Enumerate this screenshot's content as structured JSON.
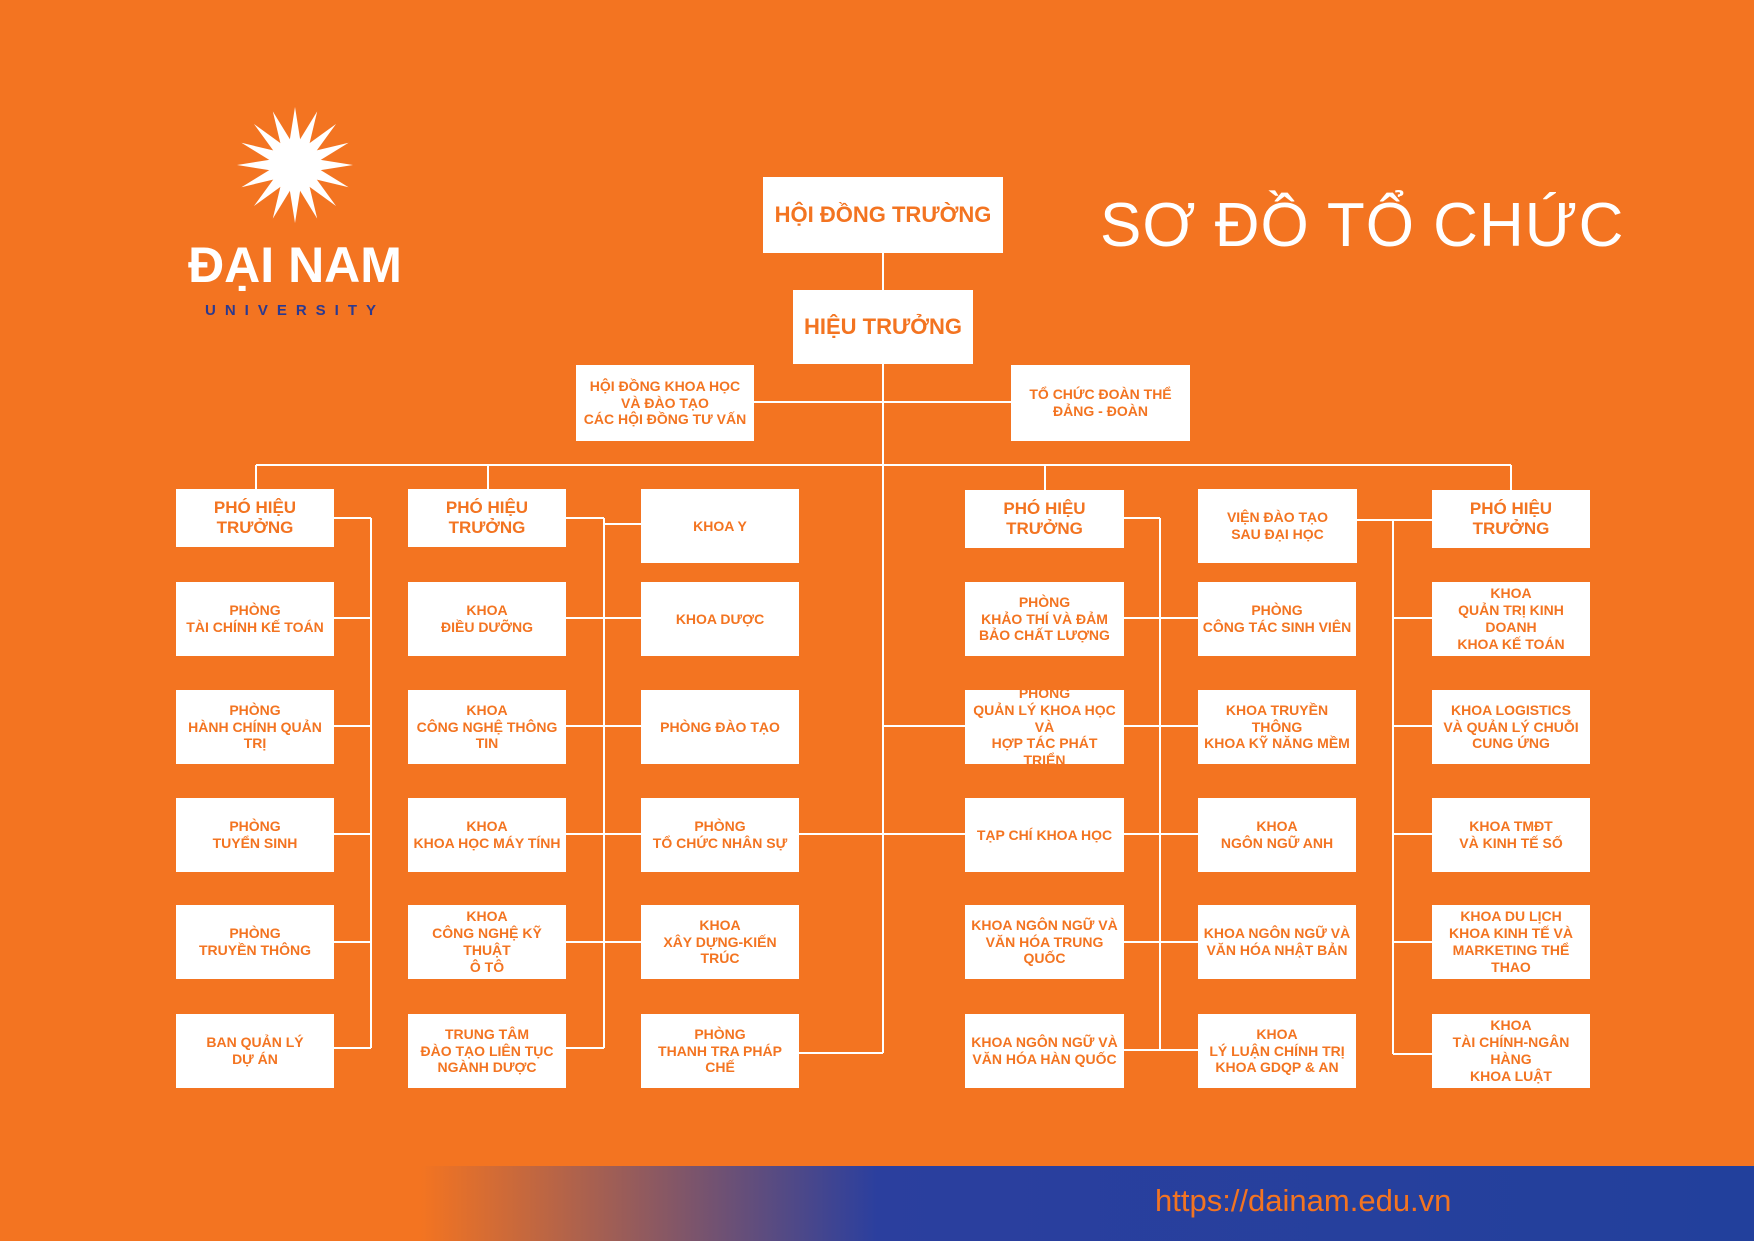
{
  "logo": {
    "name": "ĐẠI NAM",
    "sub": "UNIVERSITY"
  },
  "title": "SƠ ĐỒ TỔ CHỨC",
  "top": {
    "board": "HỘI ĐỒNG TRƯỜNG",
    "rector": "HIỆU TRƯỞNG",
    "science_council": "HỘI ĐỒNG KHOA HỌC\nVÀ ĐÀO TẠO\nCÁC HỘI ĐỒNG TƯ VẤN",
    "unions": "TỔ CHỨC ĐOÀN THỂ\nĐẢNG - ĐOÀN"
  },
  "columns": [
    {
      "head": "PHÓ HIỆU TRƯỞNG",
      "items": [
        "PHÒNG\nTÀI CHÍNH KẾ TOÁN",
        "PHÒNG\nHÀNH CHÍNH QUẢN TRỊ",
        "PHÒNG\nTUYỂN SINH",
        "PHÒNG\nTRUYỀN THÔNG",
        "BAN QUẢN LÝ\nDỰ ÁN"
      ]
    },
    {
      "head": "PHÓ HIỆU TRƯỞNG",
      "items": [
        "KHOA\nĐIỀU DƯỠNG",
        "KHOA\nCÔNG NGHỆ THÔNG TIN",
        "KHOA\nKHOA HỌC MÁY TÍNH",
        "KHOA\nCÔNG NGHỆ KỸ THUẬT\nÔ TÔ",
        "TRUNG TÂM\nĐÀO TẠO LIÊN TỤC\nNGÀNH DƯỢC"
      ]
    },
    {
      "head": "KHOA Y",
      "items": [
        "KHOA DƯỢC",
        "PHÒNG ĐÀO TẠO",
        "PHÒNG\nTỔ CHỨC NHÂN SỰ",
        "KHOA\nXÂY DỰNG-KIẾN TRÚC",
        "PHÒNG\nTHANH TRA PHÁP CHẾ"
      ]
    },
    {
      "head": "PHÓ HIỆU TRƯỞNG",
      "items": [
        "PHÒNG\nKHẢO THÍ VÀ ĐẢM\nBẢO CHẤT LƯỢNG",
        "PHÒNG\nQUẢN LÝ KHOA HỌC VÀ\nHỢP TÁC PHÁT TRIỂN",
        "TẠP CHÍ KHOA HỌC",
        "KHOA NGÔN NGỮ VÀ\nVĂN HÓA TRUNG QUỐC",
        "KHOA NGÔN NGỮ VÀ\nVĂN HÓA HÀN QUỐC"
      ]
    },
    {
      "head": "VIỆN ĐÀO TẠO\nSAU ĐẠI HỌC",
      "items": [
        "PHÒNG\nCÔNG TÁC SINH VIÊN",
        "KHOA TRUYỀN THÔNG\nKHOA KỸ NĂNG MỀM",
        "KHOA\nNGÔN NGỮ ANH",
        "KHOA NGÔN NGỮ VÀ\nVĂN HÓA NHẬT BẢN",
        "KHOA\nLÝ LUẬN CHÍNH TRỊ\nKHOA GDQP & AN"
      ]
    },
    {
      "head": "PHÓ HIỆU TRƯỞNG",
      "items": [
        "KHOA\nQUẢN TRỊ KINH DOANH\nKHOA KẾ TOÁN",
        "KHOA LOGISTICS\nVÀ QUẢN LÝ CHUỖI\nCUNG ỨNG",
        "KHOA TMĐT\nVÀ KINH TẾ SỐ",
        "KHOA DU LỊCH\nKHOA KINH TẾ VÀ\nMARKETING THỂ THAO",
        "KHOA\nTÀI CHÍNH-NGÂN HÀNG\nKHOA LUẬT"
      ]
    }
  ],
  "footer": {
    "url": "https://dainam.edu.vn"
  }
}
